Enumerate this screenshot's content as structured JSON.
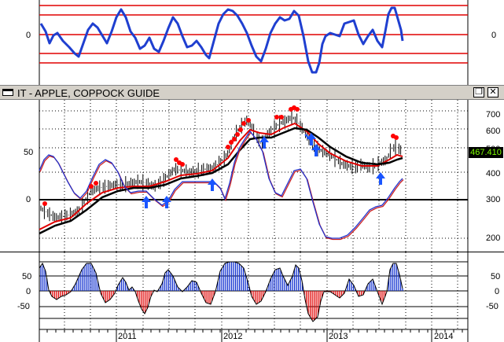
{
  "window": {
    "title": "IT - APPLE, COPPOCK GUIDE",
    "restore_glyph": "❐",
    "close_glyph": "✕"
  },
  "top_pane": {
    "zero_label_left": "0",
    "zero_label_right": "0"
  },
  "main_pane": {
    "left_labels": [
      "50",
      "0"
    ],
    "right_labels": [
      "700",
      "600",
      "500",
      "400",
      "300",
      "200"
    ],
    "last_price": "467.410",
    "price_box_color": "#000000",
    "price_text_color": "#7CFC00"
  },
  "bottom_pane": {
    "left_labels": [
      "50",
      "0",
      "-50"
    ],
    "right_labels": [
      "50",
      "0",
      "-50"
    ]
  },
  "x_axis": {
    "years": [
      "2011",
      "2012",
      "2013",
      "2014"
    ]
  },
  "colors": {
    "oscillator_line": "#1f3fd0",
    "band_lines": "#e00000",
    "price_bars": "#000000",
    "ma_red": "#e00000",
    "ma_black": "#000000",
    "coppock_blue": "#2233cc",
    "coppock_red": "#cc2222",
    "signal_dot": "#ff0000",
    "buy_arrow": "#1a55ff",
    "hist_positive": "#1030d0",
    "hist_negative": "#e00000",
    "gridline": "#000000"
  },
  "icons": {
    "buy_signal": "up-arrow-icon",
    "sell_signal": "red-dot-icon"
  }
}
